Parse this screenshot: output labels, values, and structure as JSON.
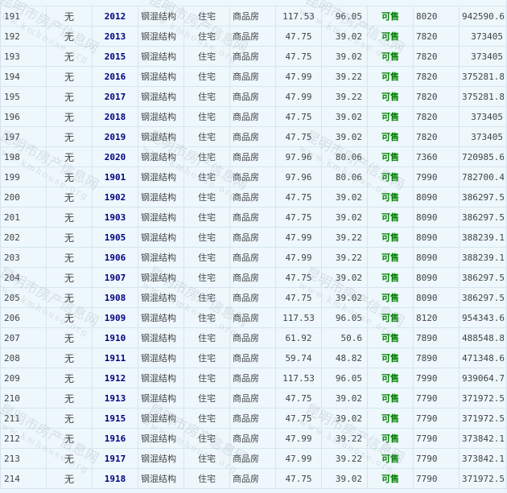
{
  "watermark": {
    "name": "昆明市房产信息网",
    "url": "www.kmhouse.org"
  },
  "colors": {
    "room_link": "#000080",
    "status": "#008000",
    "background": "#edf7fc"
  },
  "rows": [
    [
      "191",
      "无",
      "2012",
      "钢混结构",
      "住宅",
      "商品房",
      "117.53",
      "96.05",
      "可售",
      "8020",
      "942590.6"
    ],
    [
      "192",
      "无",
      "2013",
      "钢混结构",
      "住宅",
      "商品房",
      "47.75",
      "39.02",
      "可售",
      "7820",
      "373405"
    ],
    [
      "193",
      "无",
      "2015",
      "钢混结构",
      "住宅",
      "商品房",
      "47.75",
      "39.02",
      "可售",
      "7820",
      "373405"
    ],
    [
      "194",
      "无",
      "2016",
      "钢混结构",
      "住宅",
      "商品房",
      "47.99",
      "39.22",
      "可售",
      "7820",
      "375281.8"
    ],
    [
      "195",
      "无",
      "2017",
      "钢混结构",
      "住宅",
      "商品房",
      "47.99",
      "39.22",
      "可售",
      "7820",
      "375281.8"
    ],
    [
      "196",
      "无",
      "2018",
      "钢混结构",
      "住宅",
      "商品房",
      "47.75",
      "39.02",
      "可售",
      "7820",
      "373405"
    ],
    [
      "197",
      "无",
      "2019",
      "钢混结构",
      "住宅",
      "商品房",
      "47.75",
      "39.02",
      "可售",
      "7820",
      "373405"
    ],
    [
      "198",
      "无",
      "2020",
      "钢混结构",
      "住宅",
      "商品房",
      "97.96",
      "80.06",
      "可售",
      "7360",
      "720985.6"
    ],
    [
      "199",
      "无",
      "1901",
      "钢混结构",
      "住宅",
      "商品房",
      "97.96",
      "80.06",
      "可售",
      "7990",
      "782700.4"
    ],
    [
      "200",
      "无",
      "1902",
      "钢混结构",
      "住宅",
      "商品房",
      "47.75",
      "39.02",
      "可售",
      "8090",
      "386297.5"
    ],
    [
      "201",
      "无",
      "1903",
      "钢混结构",
      "住宅",
      "商品房",
      "47.75",
      "39.02",
      "可售",
      "8090",
      "386297.5"
    ],
    [
      "202",
      "无",
      "1905",
      "钢混结构",
      "住宅",
      "商品房",
      "47.99",
      "39.22",
      "可售",
      "8090",
      "388239.1"
    ],
    [
      "203",
      "无",
      "1906",
      "钢混结构",
      "住宅",
      "商品房",
      "47.99",
      "39.22",
      "可售",
      "8090",
      "388239.1"
    ],
    [
      "204",
      "无",
      "1907",
      "钢混结构",
      "住宅",
      "商品房",
      "47.75",
      "39.02",
      "可售",
      "8090",
      "386297.5"
    ],
    [
      "205",
      "无",
      "1908",
      "钢混结构",
      "住宅",
      "商品房",
      "47.75",
      "39.02",
      "可售",
      "8090",
      "386297.5"
    ],
    [
      "206",
      "无",
      "1909",
      "钢混结构",
      "住宅",
      "商品房",
      "117.53",
      "96.05",
      "可售",
      "8120",
      "954343.6"
    ],
    [
      "207",
      "无",
      "1910",
      "钢混结构",
      "住宅",
      "商品房",
      "61.92",
      "50.6",
      "可售",
      "7890",
      "488548.8"
    ],
    [
      "208",
      "无",
      "1911",
      "钢混结构",
      "住宅",
      "商品房",
      "59.74",
      "48.82",
      "可售",
      "7890",
      "471348.6"
    ],
    [
      "209",
      "无",
      "1912",
      "钢混结构",
      "住宅",
      "商品房",
      "117.53",
      "96.05",
      "可售",
      "7990",
      "939064.7"
    ],
    [
      "210",
      "无",
      "1913",
      "钢混结构",
      "住宅",
      "商品房",
      "47.75",
      "39.02",
      "可售",
      "7790",
      "371972.5"
    ],
    [
      "211",
      "无",
      "1915",
      "钢混结构",
      "住宅",
      "商品房",
      "47.75",
      "39.02",
      "可售",
      "7790",
      "371972.5"
    ],
    [
      "212",
      "无",
      "1916",
      "钢混结构",
      "住宅",
      "商品房",
      "47.99",
      "39.22",
      "可售",
      "7790",
      "373842.1"
    ],
    [
      "213",
      "无",
      "1917",
      "钢混结构",
      "住宅",
      "商品房",
      "47.99",
      "39.22",
      "可售",
      "7790",
      "373842.1"
    ],
    [
      "214",
      "无",
      "1918",
      "钢混结构",
      "住宅",
      "商品房",
      "47.75",
      "39.02",
      "可售",
      "7790",
      "371972.5"
    ]
  ]
}
